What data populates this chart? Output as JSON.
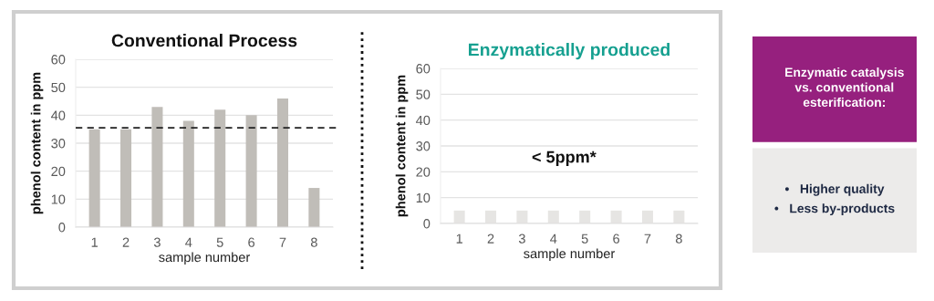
{
  "chart_data": [
    {
      "type": "bar",
      "title": "Conventional Process",
      "xlabel": "sample number",
      "ylabel": "phenol content in ppm",
      "categories": [
        "1",
        "2",
        "3",
        "4",
        "5",
        "6",
        "7",
        "8"
      ],
      "values": [
        35,
        35,
        43,
        38,
        42,
        40,
        46,
        14
      ],
      "color": "#c0bdb8",
      "ylim": [
        0,
        60
      ],
      "yticks": [
        0,
        10,
        20,
        30,
        40,
        50,
        60
      ],
      "grid": "y",
      "ref_lines": [
        {
          "axis": "y",
          "value": 35.5,
          "color": "#222222",
          "line_style": "dashed"
        }
      ]
    },
    {
      "type": "bar",
      "title": "Enzymatically produced",
      "xlabel": "sample number",
      "ylabel": "phenol content in ppm",
      "categories": [
        "1",
        "2",
        "3",
        "4",
        "5",
        "6",
        "7",
        "8"
      ],
      "values": [
        5,
        5,
        5,
        5,
        5,
        5,
        5,
        5
      ],
      "color": "#e6e5e3",
      "ylim": [
        0,
        60
      ],
      "yticks": [
        0,
        10,
        20,
        30,
        40,
        50,
        60
      ],
      "grid": "y",
      "annotations": [
        "< 5ppm*"
      ]
    },
    {
      "type": "other",
      "title": "Enzymatic catalysis\nvs. conventional\nesterification:",
      "annotations": [
        "•   Higher quality",
        "•   Less by-products"
      ]
    }
  ]
}
